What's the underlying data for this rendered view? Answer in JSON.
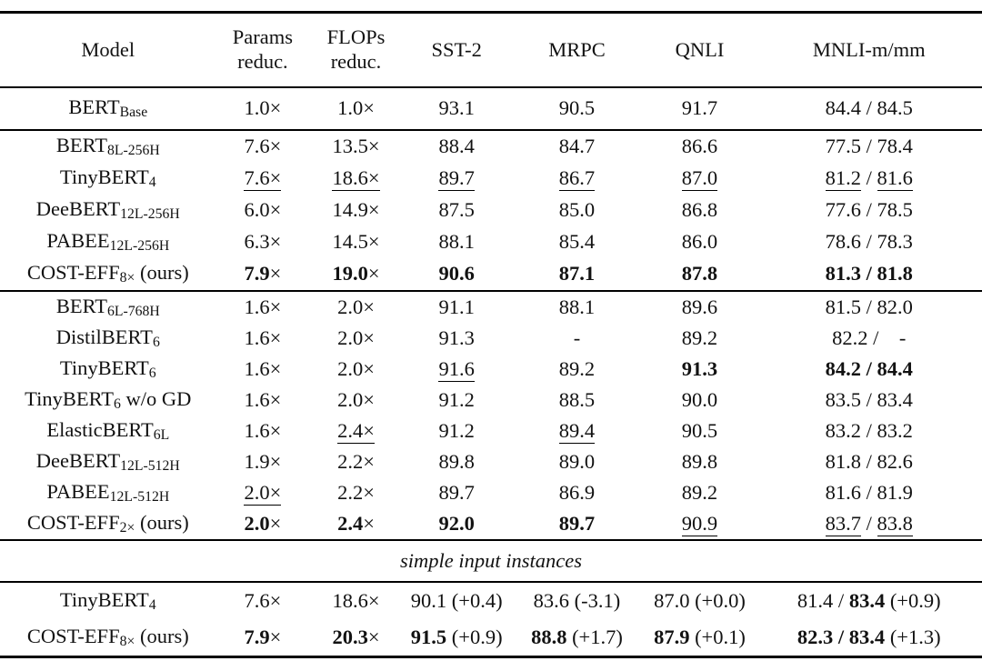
{
  "colors": {
    "background": "#ffffff",
    "text": "#121212",
    "rule": "#000000"
  },
  "table": {
    "header": [
      "Model",
      "Params\nreduc.",
      "FLOPs\nreduc.",
      "SST-2",
      "MRPC",
      "QNLI",
      "MNLI-m/mm"
    ],
    "sections": [
      {
        "name": "baseline",
        "row_class": "sec-base",
        "rows": [
          {
            "model": [
              {
                "t": "BERT"
              },
              {
                "t": "Base",
                "sub": true
              }
            ],
            "cells": [
              [
                {
                  "t": "1.0×"
                }
              ],
              [
                {
                  "t": "1.0×"
                }
              ],
              [
                {
                  "t": "93.1"
                }
              ],
              [
                {
                  "t": "90.5"
                }
              ],
              [
                {
                  "t": "91.7"
                }
              ],
              [
                {
                  "t": "84.4 / 84.5"
                }
              ]
            ]
          }
        ]
      },
      {
        "name": "high-compression",
        "row_class": "sec-g1",
        "rows": [
          {
            "model": [
              {
                "t": "BERT"
              },
              {
                "t": "8L-256H",
                "sub": true
              }
            ],
            "cells": [
              [
                {
                  "t": "7.6×"
                }
              ],
              [
                {
                  "t": "13.5×"
                }
              ],
              [
                {
                  "t": "88.4"
                }
              ],
              [
                {
                  "t": "84.7"
                }
              ],
              [
                {
                  "t": "86.6"
                }
              ],
              [
                {
                  "t": "77.5 / 78.4"
                }
              ]
            ]
          },
          {
            "model": [
              {
                "t": "TinyBERT"
              },
              {
                "t": "4",
                "sub": true
              }
            ],
            "cells": [
              [
                {
                  "t": "7.6×",
                  "u": true
                }
              ],
              [
                {
                  "t": "18.6×",
                  "u": true
                }
              ],
              [
                {
                  "t": "89.7",
                  "u": true
                }
              ],
              [
                {
                  "t": "86.7",
                  "u": true
                }
              ],
              [
                {
                  "t": "87.0",
                  "u": true
                }
              ],
              [
                {
                  "t": "81.2",
                  "u": true
                },
                {
                  "t": " / "
                },
                {
                  "t": "81.6",
                  "u": true
                }
              ]
            ]
          },
          {
            "model": [
              {
                "t": "DeeBERT"
              },
              {
                "t": "12L-256H",
                "sub": true
              }
            ],
            "cells": [
              [
                {
                  "t": "6.0×"
                }
              ],
              [
                {
                  "t": "14.9×"
                }
              ],
              [
                {
                  "t": "87.5"
                }
              ],
              [
                {
                  "t": "85.0"
                }
              ],
              [
                {
                  "t": "86.8"
                }
              ],
              [
                {
                  "t": "77.6 / 78.5"
                }
              ]
            ]
          },
          {
            "model": [
              {
                "t": "PABEE"
              },
              {
                "t": "12L-256H",
                "sub": true
              }
            ],
            "cells": [
              [
                {
                  "t": "6.3×"
                }
              ],
              [
                {
                  "t": "14.5×"
                }
              ],
              [
                {
                  "t": "88.1"
                }
              ],
              [
                {
                  "t": "85.4"
                }
              ],
              [
                {
                  "t": "86.0"
                }
              ],
              [
                {
                  "t": "78.6 / 78.3"
                }
              ]
            ]
          },
          {
            "model": [
              {
                "t": "COST-EFF"
              },
              {
                "t": "8×",
                "sub": true
              },
              {
                "t": " (ours)"
              }
            ],
            "cells": [
              [
                {
                  "t": "7.9",
                  "b": true
                },
                {
                  "t": "×"
                }
              ],
              [
                {
                  "t": "19.0",
                  "b": true
                },
                {
                  "t": "×"
                }
              ],
              [
                {
                  "t": "90.6",
                  "b": true
                }
              ],
              [
                {
                  "t": "87.1",
                  "b": true
                }
              ],
              [
                {
                  "t": "87.8",
                  "b": true
                }
              ],
              [
                {
                  "t": "81.3 / 81.8",
                  "b": true
                }
              ]
            ]
          }
        ]
      },
      {
        "name": "low-compression",
        "row_class": "sec-g2",
        "rows": [
          {
            "model": [
              {
                "t": "BERT"
              },
              {
                "t": "6L-768H",
                "sub": true
              }
            ],
            "cells": [
              [
                {
                  "t": "1.6×"
                }
              ],
              [
                {
                  "t": "2.0×"
                }
              ],
              [
                {
                  "t": "91.1"
                }
              ],
              [
                {
                  "t": "88.1"
                }
              ],
              [
                {
                  "t": "89.6"
                }
              ],
              [
                {
                  "t": "81.5 / 82.0"
                }
              ]
            ]
          },
          {
            "model": [
              {
                "t": "DistilBERT"
              },
              {
                "t": "6",
                "sub": true
              }
            ],
            "cells": [
              [
                {
                  "t": "1.6×"
                }
              ],
              [
                {
                  "t": "2.0×"
                }
              ],
              [
                {
                  "t": "91.3"
                }
              ],
              [
                {
                  "t": "-"
                }
              ],
              [
                {
                  "t": "89.2"
                }
              ],
              [
                {
                  "t": "82.2 /  -"
                }
              ]
            ]
          },
          {
            "model": [
              {
                "t": "TinyBERT"
              },
              {
                "t": "6",
                "sub": true
              }
            ],
            "cells": [
              [
                {
                  "t": "1.6×"
                }
              ],
              [
                {
                  "t": "2.0×"
                }
              ],
              [
                {
                  "t": "91.6",
                  "u": true
                }
              ],
              [
                {
                  "t": "89.2"
                }
              ],
              [
                {
                  "t": "91.3",
                  "b": true
                }
              ],
              [
                {
                  "t": "84.2 / 84.4",
                  "b": true
                }
              ]
            ]
          },
          {
            "model": [
              {
                "t": "TinyBERT"
              },
              {
                "t": "6",
                "sub": true
              },
              {
                "t": " w/o GD"
              }
            ],
            "cells": [
              [
                {
                  "t": "1.6×"
                }
              ],
              [
                {
                  "t": "2.0×"
                }
              ],
              [
                {
                  "t": "91.2"
                }
              ],
              [
                {
                  "t": "88.5"
                }
              ],
              [
                {
                  "t": "90.0"
                }
              ],
              [
                {
                  "t": "83.5 / 83.4"
                }
              ]
            ]
          },
          {
            "model": [
              {
                "t": "ElasticBERT"
              },
              {
                "t": "6L",
                "sub": true
              }
            ],
            "cells": [
              [
                {
                  "t": "1.6×"
                }
              ],
              [
                {
                  "t": "2.4×",
                  "u": true
                }
              ],
              [
                {
                  "t": "91.2"
                }
              ],
              [
                {
                  "t": "89.4",
                  "u": true
                }
              ],
              [
                {
                  "t": "90.5"
                }
              ],
              [
                {
                  "t": "83.2 / 83.2"
                }
              ]
            ]
          },
          {
            "model": [
              {
                "t": "DeeBERT"
              },
              {
                "t": "12L-512H",
                "sub": true
              }
            ],
            "cells": [
              [
                {
                  "t": "1.9×"
                }
              ],
              [
                {
                  "t": "2.2×"
                }
              ],
              [
                {
                  "t": "89.8"
                }
              ],
              [
                {
                  "t": "89.0"
                }
              ],
              [
                {
                  "t": "89.8"
                }
              ],
              [
                {
                  "t": "81.8 / 82.6"
                }
              ]
            ]
          },
          {
            "model": [
              {
                "t": "PABEE"
              },
              {
                "t": "12L-512H",
                "sub": true
              }
            ],
            "cells": [
              [
                {
                  "t": "2.0×",
                  "u": true
                }
              ],
              [
                {
                  "t": "2.2×"
                }
              ],
              [
                {
                  "t": "89.7"
                }
              ],
              [
                {
                  "t": "86.9"
                }
              ],
              [
                {
                  "t": "89.2"
                }
              ],
              [
                {
                  "t": "81.6 / 81.9"
                }
              ]
            ]
          },
          {
            "model": [
              {
                "t": "COST-EFF"
              },
              {
                "t": "2×",
                "sub": true
              },
              {
                "t": " (ours)"
              }
            ],
            "cells": [
              [
                {
                  "t": "2.0",
                  "b": true
                },
                {
                  "t": "×"
                }
              ],
              [
                {
                  "t": "2.4",
                  "b": true
                },
                {
                  "t": "×"
                }
              ],
              [
                {
                  "t": "92.0",
                  "b": true
                }
              ],
              [
                {
                  "t": "89.7",
                  "b": true
                }
              ],
              [
                {
                  "t": "90.9",
                  "u": true
                }
              ],
              [
                {
                  "t": "83.7",
                  "u": true
                },
                {
                  "t": " / "
                },
                {
                  "t": "83.8",
                  "u": true
                }
              ]
            ]
          }
        ]
      },
      {
        "name": "simple-input-divider",
        "row_class": "sec-divider",
        "divider_label": "simple input instances"
      },
      {
        "name": "simple-input",
        "row_class": "sec-simple",
        "rows": [
          {
            "model": [
              {
                "t": "TinyBERT"
              },
              {
                "t": "4",
                "sub": true
              }
            ],
            "cells": [
              [
                {
                  "t": "7.6×"
                }
              ],
              [
                {
                  "t": "18.6×"
                }
              ],
              [
                {
                  "t": "90.1 (+0.4)"
                }
              ],
              [
                {
                  "t": "83.6 (-3.1)"
                }
              ],
              [
                {
                  "t": "87.0 (+0.0)"
                }
              ],
              [
                {
                  "t": "81.4 / "
                },
                {
                  "t": "83.4",
                  "b": true
                },
                {
                  "t": " (+0.9)"
                }
              ]
            ]
          },
          {
            "model": [
              {
                "t": "COST-EFF"
              },
              {
                "t": "8×",
                "sub": true
              },
              {
                "t": " (ours)"
              }
            ],
            "cells": [
              [
                {
                  "t": "7.9",
                  "b": true
                },
                {
                  "t": "×"
                }
              ],
              [
                {
                  "t": "20.3",
                  "b": true
                },
                {
                  "t": "×"
                }
              ],
              [
                {
                  "t": "91.5",
                  "b": true
                },
                {
                  "t": " (+0.9)"
                }
              ],
              [
                {
                  "t": "88.8",
                  "b": true
                },
                {
                  "t": " (+1.7)"
                }
              ],
              [
                {
                  "t": "87.9",
                  "b": true
                },
                {
                  "t": " (+0.1)"
                }
              ],
              [
                {
                  "t": "82.3 / 83.4",
                  "b": true
                },
                {
                  "t": " (+1.3)"
                }
              ]
            ]
          }
        ]
      }
    ]
  }
}
